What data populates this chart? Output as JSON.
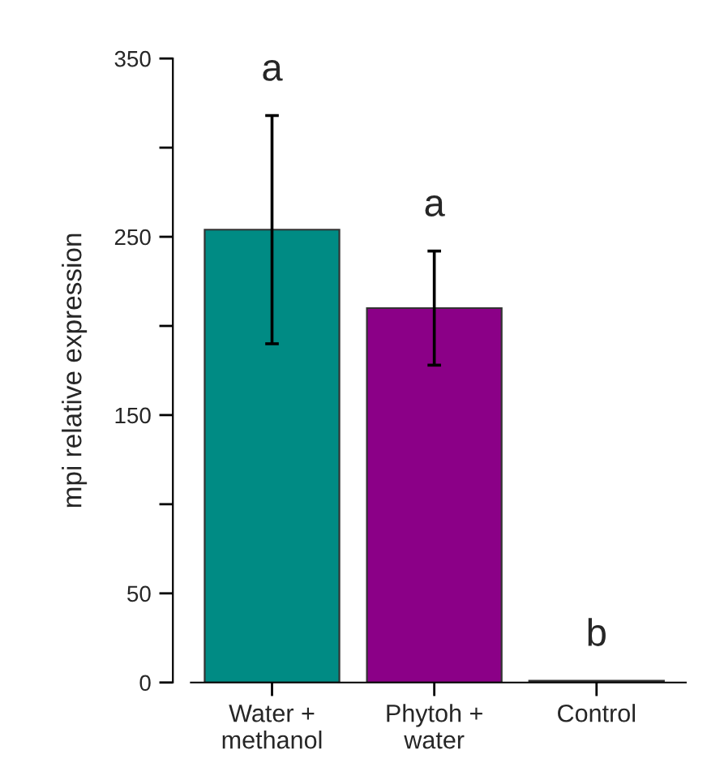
{
  "chart_data": {
    "type": "bar",
    "categories": [
      "Water +\nmethanol",
      "Phytoh +\nwater",
      "Control"
    ],
    "values": [
      254,
      210,
      1
    ],
    "colors": [
      "#008b84",
      "#8b0087",
      "#8f9aa6"
    ],
    "errors": [
      [
        190,
        318
      ],
      [
        178,
        242
      ],
      null
    ],
    "ylabel": "mpi relative expression",
    "ylim": [
      0,
      350
    ],
    "yticks": [
      0,
      50,
      {
        "value": 100,
        "label": null
      },
      150,
      {
        "value": 200,
        "label": null
      },
      250,
      {
        "value": 300,
        "label": null
      },
      350
    ],
    "annotations": [
      "a",
      "a",
      "b"
    ],
    "grid": false,
    "legend": false
  }
}
